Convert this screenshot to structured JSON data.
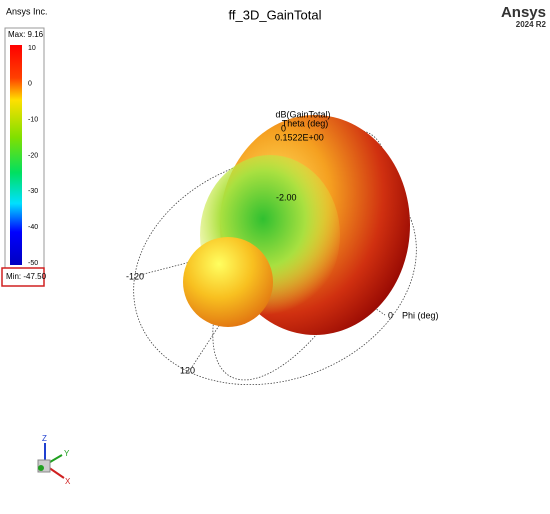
{
  "header": {
    "company": "Ansys Inc.",
    "title": "ff_3D_GainTotal",
    "brand": "Ansys",
    "version": "2024 R2"
  },
  "legend": {
    "max": "Max: 9.16",
    "ticks": [
      "10",
      "0",
      "-10",
      "-20",
      "-30",
      "-40",
      "-50"
    ],
    "min": "Min: -47.50"
  },
  "plot": {
    "quantity": "dB(GainTotal)",
    "theta_label": "Theta (deg)",
    "theta_zero": "0",
    "center_value": "0.1522E+00",
    "inner_value": "-2.00",
    "phi_minus120": "-120",
    "phi_120": "120",
    "phi_zero": "0",
    "phi_label": "Phi (deg)"
  },
  "axes": {
    "z": "Z",
    "y": "Y",
    "x": "X"
  }
}
